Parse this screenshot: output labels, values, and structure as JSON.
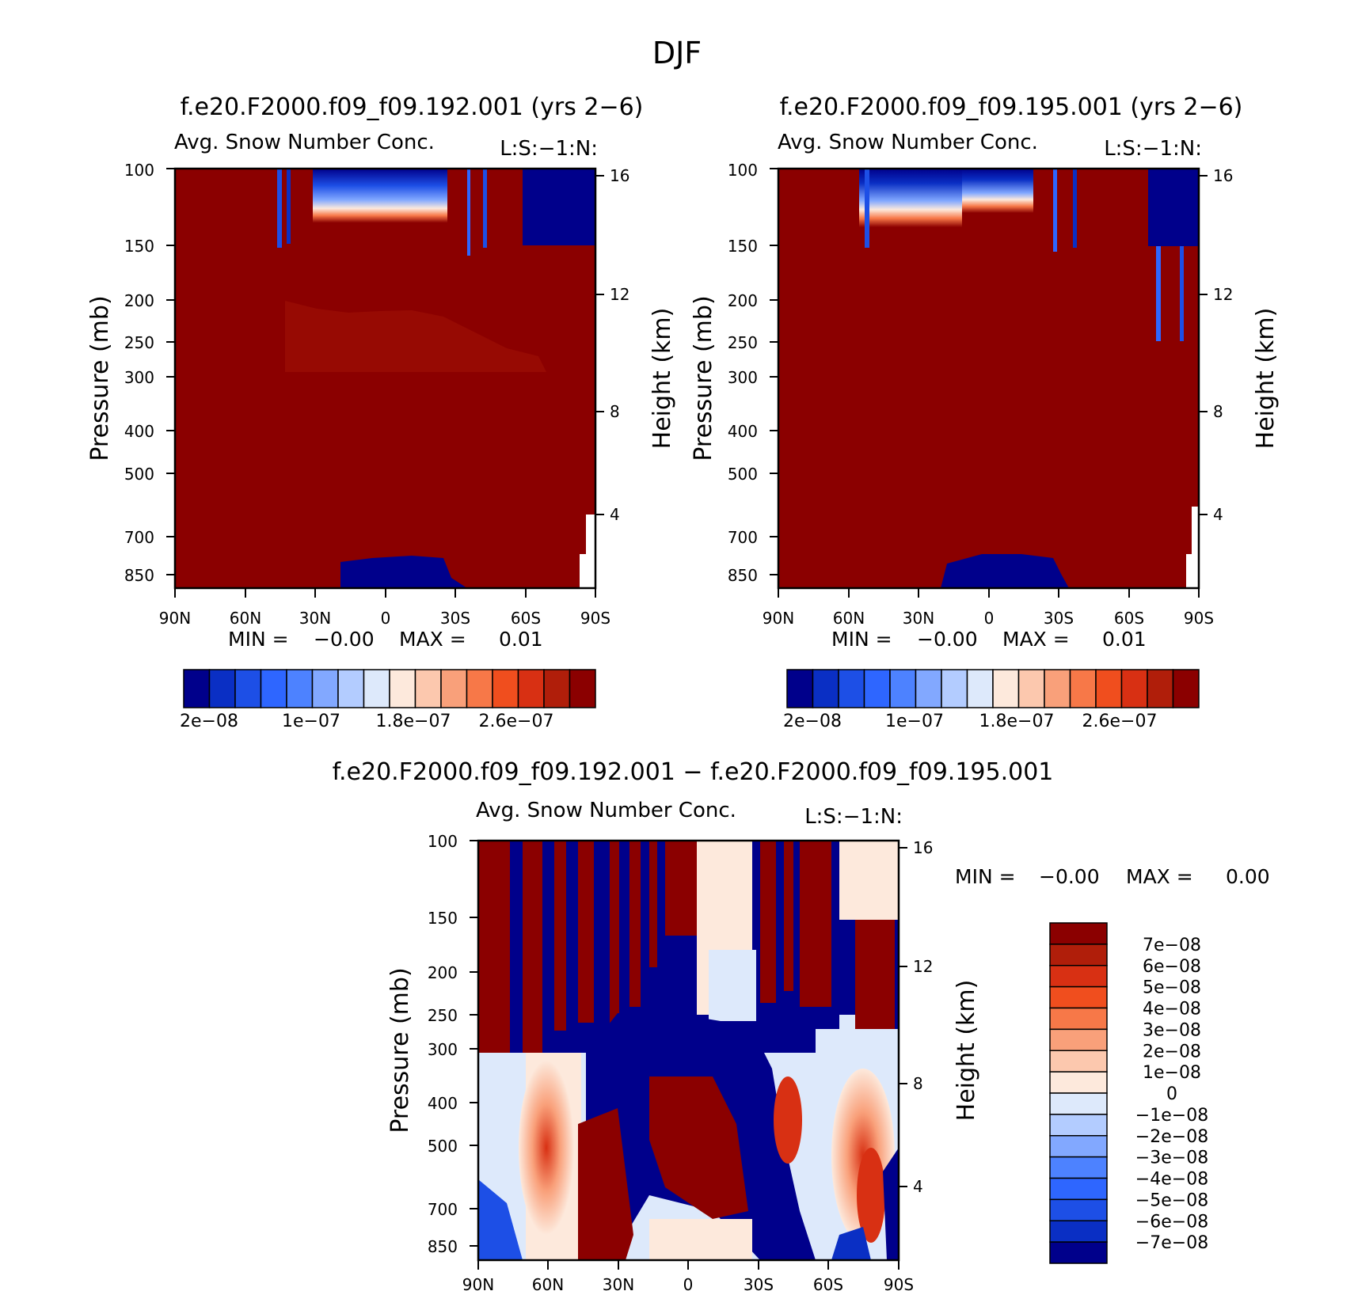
{
  "figure_title": "DJF",
  "panels": [
    {
      "title": "f.e20.F2000.f09_f09.192.001 (yrs 2−6)",
      "subtitle": "Avg. Snow Number Conc.",
      "corner_label": "L:S:−1:N:",
      "ylabel": "Pressure (mb)",
      "ylabel_right": "Height (km)",
      "xticks": [
        "90N",
        "60N",
        "30N",
        "0",
        "30S",
        "60S",
        "90S"
      ],
      "yticks": [
        "100",
        "150",
        "200",
        "250",
        "300",
        "400",
        "500",
        "700",
        "850"
      ],
      "yticks_right": [
        "16",
        "12",
        "8",
        "4"
      ],
      "min_label": "MIN =",
      "min_value": "−0.00",
      "max_label": "MAX =",
      "max_value": "0.01",
      "colorbar_labels": [
        "2e−08",
        "1e−07",
        "1.8e−07",
        "2.6e−07"
      ]
    },
    {
      "title": "f.e20.F2000.f09_f09.195.001 (yrs 2−6)",
      "subtitle": "Avg. Snow Number Conc.",
      "corner_label": "L:S:−1:N:",
      "ylabel": "Pressure (mb)",
      "ylabel_right": "Height (km)",
      "xticks": [
        "90N",
        "60N",
        "30N",
        "0",
        "30S",
        "60S",
        "90S"
      ],
      "yticks": [
        "100",
        "150",
        "200",
        "250",
        "300",
        "400",
        "500",
        "700",
        "850"
      ],
      "yticks_right": [
        "16",
        "12",
        "8",
        "4"
      ],
      "min_label": "MIN =",
      "min_value": "−0.00",
      "max_label": "MAX =",
      "max_value": "0.01",
      "colorbar_labels": [
        "2e−08",
        "1e−07",
        "1.8e−07",
        "2.6e−07"
      ]
    },
    {
      "title": "f.e20.F2000.f09_f09.192.001 − f.e20.F2000.f09_f09.195.001",
      "subtitle": "Avg. Snow Number Conc.",
      "corner_label": "L:S:−1:N:",
      "ylabel": "Pressure (mb)",
      "ylabel_right": "Height (km)",
      "xticks": [
        "90N",
        "60N",
        "30N",
        "0",
        "30S",
        "60S",
        "90S"
      ],
      "yticks": [
        "100",
        "150",
        "200",
        "250",
        "300",
        "400",
        "500",
        "700",
        "850"
      ],
      "yticks_right": [
        "16",
        "12",
        "8",
        "4"
      ],
      "min_label": "MIN =",
      "min_value": "−0.00",
      "max_label": "MAX =",
      "max_value": "0.00",
      "colorbar_labels": [
        "7e−08",
        "6e−08",
        "5e−08",
        "4e−08",
        "3e−08",
        "2e−08",
        "1e−08",
        "0",
        "−1e−08",
        "−2e−08",
        "−3e−08",
        "−4e−08",
        "−5e−08",
        "−6e−08",
        "−7e−08"
      ]
    }
  ],
  "chart_data": [
    {
      "type": "heatmap",
      "title": "f.e20.F2000.f09_f09.192.001 (yrs 2-6)",
      "x_categories": [
        "90N",
        "60N",
        "30N",
        "0",
        "30S",
        "60S",
        "90S"
      ],
      "x_range": [
        90,
        -90
      ],
      "y_range_mb": [
        100,
        850
      ],
      "y_scale": "log",
      "y_right_km": [
        16,
        12,
        8,
        4
      ],
      "colors": [
        "#00008b",
        "#0a2fc4",
        "#1d4fe6",
        "#2e66ff",
        "#4d82ff",
        "#82a8ff",
        "#b3ccff",
        "#dde9fb",
        "#fde9dc",
        "#fcc8ae",
        "#f9a07a",
        "#f77848",
        "#f04e1e",
        "#d83013",
        "#b01e0a",
        "#8b0000"
      ],
      "levels": [
        2e-08,
        1e-07,
        1.8e-07,
        2.6e-07
      ],
      "min": -0.0,
      "max": 0.01
    },
    {
      "type": "heatmap",
      "title": "f.e20.F2000.f09_f09.195.001 (yrs 2-6)",
      "x_categories": [
        "90N",
        "60N",
        "30N",
        "0",
        "30S",
        "60S",
        "90S"
      ],
      "x_range": [
        90,
        -90
      ],
      "y_range_mb": [
        100,
        850
      ],
      "y_scale": "log",
      "y_right_km": [
        16,
        12,
        8,
        4
      ],
      "colors": [
        "#00008b",
        "#0a2fc4",
        "#1d4fe6",
        "#2e66ff",
        "#4d82ff",
        "#82a8ff",
        "#b3ccff",
        "#dde9fb",
        "#fde9dc",
        "#fcc8ae",
        "#f9a07a",
        "#f77848",
        "#f04e1e",
        "#d83013",
        "#b01e0a",
        "#8b0000"
      ],
      "levels": [
        2e-08,
        1e-07,
        1.8e-07,
        2.6e-07
      ],
      "min": -0.0,
      "max": 0.01
    },
    {
      "type": "heatmap",
      "title": "f.e20.F2000.f09_f09.192.001 - f.e20.F2000.f09_f09.195.001",
      "x_categories": [
        "90N",
        "60N",
        "30N",
        "0",
        "30S",
        "60S",
        "90S"
      ],
      "x_range": [
        90,
        -90
      ],
      "y_range_mb": [
        100,
        850
      ],
      "y_scale": "log",
      "y_right_km": [
        16,
        12,
        8,
        4
      ],
      "colors": [
        "#8b0000",
        "#b01e0a",
        "#d83013",
        "#f04e1e",
        "#f77848",
        "#f9a07a",
        "#fcc8ae",
        "#fde9dc",
        "#dde9fb",
        "#b3ccff",
        "#82a8ff",
        "#4d82ff",
        "#2e66ff",
        "#1d4fe6",
        "#0a2fc4",
        "#00008b"
      ],
      "levels": [
        7e-08,
        6e-08,
        5e-08,
        4e-08,
        3e-08,
        2e-08,
        1e-08,
        0,
        -1e-08,
        -2e-08,
        -3e-08,
        -4e-08,
        -5e-08,
        -6e-08,
        -7e-08
      ],
      "min": -0.0,
      "max": 0.0
    }
  ]
}
